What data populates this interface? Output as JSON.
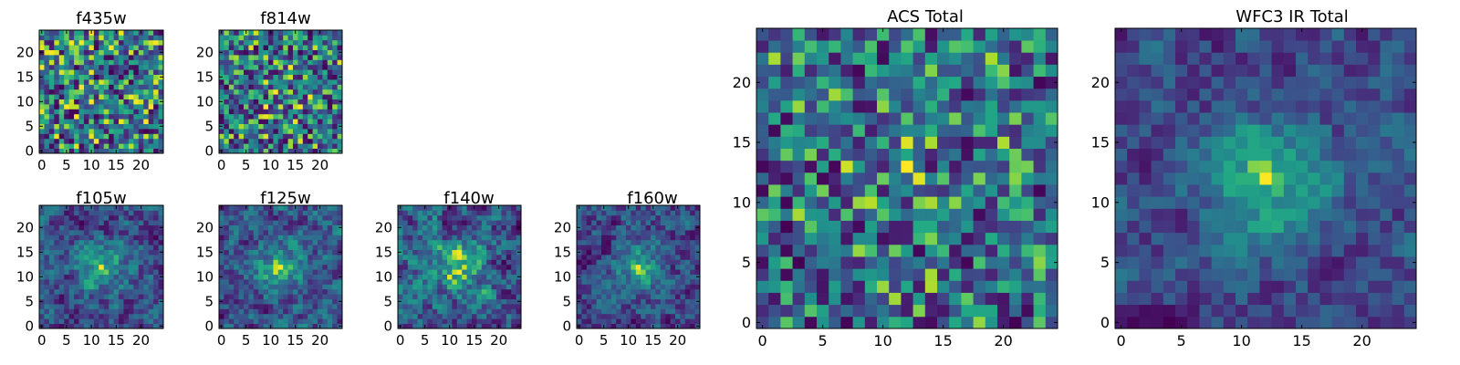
{
  "chart_data": [
    {
      "type": "heatmap",
      "title": "f435w",
      "x_ticks": [
        0,
        5,
        10,
        15,
        20
      ],
      "y_ticks": [
        0,
        5,
        10,
        15,
        20
      ],
      "xlim": [
        -0.5,
        24.5
      ],
      "ylim": [
        -0.5,
        24.5
      ],
      "grid_size": 25,
      "colormap": "viridis",
      "pattern": "noise",
      "center_strength": 0.0,
      "seed": 11
    },
    {
      "type": "heatmap",
      "title": "f814w",
      "x_ticks": [
        0,
        5,
        10,
        15,
        20
      ],
      "y_ticks": [
        0,
        5,
        10,
        15,
        20
      ],
      "xlim": [
        -0.5,
        24.5
      ],
      "ylim": [
        -0.5,
        24.5
      ],
      "grid_size": 25,
      "colormap": "viridis",
      "pattern": "noise",
      "center_strength": 0.1,
      "seed": 23
    },
    {
      "type": "heatmap",
      "title": "f105w",
      "x_ticks": [
        0,
        5,
        10,
        15,
        20
      ],
      "y_ticks": [
        0,
        5,
        10,
        15,
        20
      ],
      "xlim": [
        -0.5,
        24.5
      ],
      "ylim": [
        -0.5,
        24.5
      ],
      "grid_size": 25,
      "colormap": "viridis",
      "pattern": "smooth",
      "center_strength": 0.35,
      "seed": 37
    },
    {
      "type": "heatmap",
      "title": "f125w",
      "x_ticks": [
        0,
        5,
        10,
        15,
        20
      ],
      "y_ticks": [
        0,
        5,
        10,
        15,
        20
      ],
      "xlim": [
        -0.5,
        24.5
      ],
      "ylim": [
        -0.5,
        24.5
      ],
      "grid_size": 25,
      "colormap": "viridis",
      "pattern": "smooth",
      "center_strength": 0.35,
      "seed": 41
    },
    {
      "type": "heatmap",
      "title": "f140w",
      "x_ticks": [
        0,
        5,
        10,
        15,
        20
      ],
      "y_ticks": [
        0,
        5,
        10,
        15,
        20
      ],
      "xlim": [
        -0.5,
        24.5
      ],
      "ylim": [
        -0.5,
        24.5
      ],
      "grid_size": 25,
      "colormap": "viridis",
      "pattern": "smooth",
      "center_strength": 0.3,
      "seed": 53
    },
    {
      "type": "heatmap",
      "title": "f160w",
      "x_ticks": [
        0,
        5,
        10,
        15,
        20
      ],
      "y_ticks": [
        0,
        5,
        10,
        15,
        20
      ],
      "xlim": [
        -0.5,
        24.5
      ],
      "ylim": [
        -0.5,
        24.5
      ],
      "grid_size": 25,
      "colormap": "viridis",
      "pattern": "smooth",
      "center_strength": 0.35,
      "seed": 67
    },
    {
      "type": "heatmap",
      "title": "ACS Total",
      "x_ticks": [
        0,
        5,
        10,
        15,
        20
      ],
      "y_ticks": [
        0,
        5,
        10,
        15,
        20
      ],
      "xlim": [
        -0.5,
        24.5
      ],
      "ylim": [
        -0.5,
        24.5
      ],
      "grid_size": 25,
      "colormap": "viridis",
      "pattern": "bright-noise",
      "center_strength": 0.05,
      "seed": 79
    },
    {
      "type": "heatmap",
      "title": "WFC3 IR Total",
      "x_ticks": [
        0,
        5,
        10,
        15,
        20
      ],
      "y_ticks": [
        0,
        5,
        10,
        15,
        20
      ],
      "xlim": [
        -0.5,
        24.5
      ],
      "ylim": [
        -0.5,
        24.5
      ],
      "grid_size": 25,
      "colormap": "viridis",
      "pattern": "smooth",
      "center_strength": 0.45,
      "seed": 97
    }
  ]
}
